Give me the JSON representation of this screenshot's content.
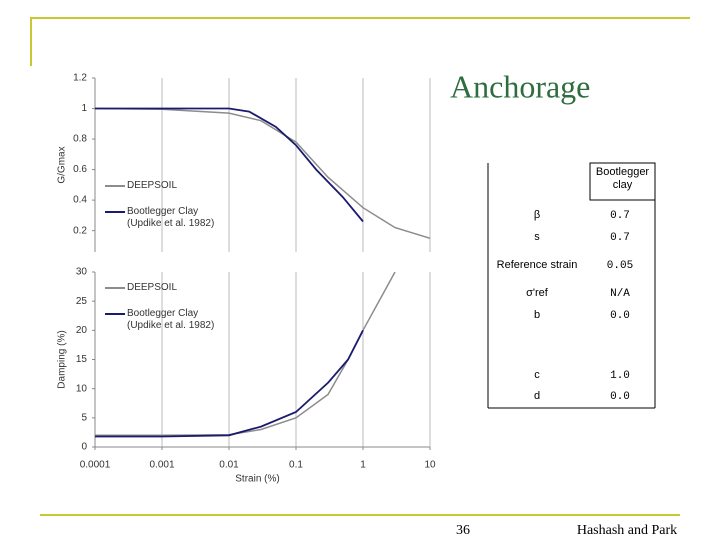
{
  "slide": {
    "title": "Anchorage",
    "page_number": "36",
    "footer": "Hashash and Park"
  },
  "chart_data": [
    {
      "type": "line",
      "ylabel": "G/Gmax",
      "xscale": "log",
      "xlim": [
        0.0001,
        10
      ],
      "ylim": [
        0.06,
        1.2
      ],
      "yticks": [
        0.2,
        0.4,
        0.6,
        0.8,
        1,
        1.2
      ],
      "series": [
        {
          "name": "DEEPSOIL",
          "color": "#8c8c8c",
          "x": [
            0.0001,
            0.001,
            0.01,
            0.03,
            0.1,
            0.3,
            1,
            3,
            10
          ],
          "values": [
            1.0,
            0.995,
            0.97,
            0.92,
            0.78,
            0.55,
            0.35,
            0.22,
            0.15
          ]
        },
        {
          "name": "Bootlegger Clay (Updike et al. 1982)",
          "color": "#1a1a6e",
          "x": [
            0.0001,
            0.01,
            0.02,
            0.05,
            0.1,
            0.2,
            0.5,
            1
          ],
          "values": [
            1.0,
            1.0,
            0.98,
            0.88,
            0.76,
            0.6,
            0.42,
            0.26
          ]
        }
      ]
    },
    {
      "type": "line",
      "xlabel": "Strain (%)",
      "ylabel": "Damping (%)",
      "xscale": "log",
      "xlim": [
        0.0001,
        10
      ],
      "ylim": [
        0,
        30
      ],
      "xticks": [
        0.0001,
        0.001,
        0.01,
        0.1,
        1,
        10
      ],
      "yticks": [
        0,
        5,
        10,
        15,
        20,
        25,
        30
      ],
      "series": [
        {
          "name": "DEEPSOIL",
          "color": "#8c8c8c",
          "x": [
            0.0001,
            0.001,
            0.01,
            0.03,
            0.1,
            0.3,
            0.6,
            1,
            3
          ],
          "values": [
            2,
            2,
            2.1,
            3,
            5,
            9,
            15,
            20,
            30
          ]
        },
        {
          "name": "Bootlegger Clay (Updike et al. 1982)",
          "color": "#1a1a6e",
          "x": [
            0.0001,
            0.001,
            0.01,
            0.03,
            0.1,
            0.3,
            0.6,
            1
          ],
          "values": [
            1.8,
            1.8,
            2,
            3.5,
            6,
            11,
            15,
            20
          ]
        }
      ]
    }
  ],
  "table": {
    "header": "Bootlegger clay",
    "rows": [
      [
        "β",
        "0.7"
      ],
      [
        "s",
        "0.7"
      ],
      [
        "Reference strain",
        "0.05"
      ],
      [
        "σ'ref",
        "N/A"
      ],
      [
        "b",
        "0.0"
      ],
      [
        "c",
        "1.0"
      ],
      [
        "d",
        "0.0"
      ]
    ]
  }
}
